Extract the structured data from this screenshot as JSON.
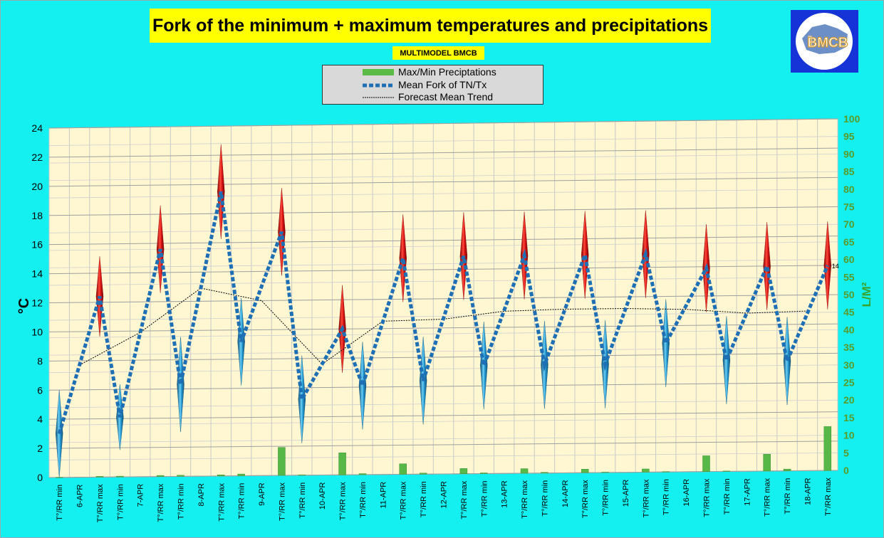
{
  "chart_data": {
    "type": "line",
    "title": "Fork of the minimum + maximum temperatures and precipitations",
    "subtitle": "MULTIMODEL BMCB",
    "legend": [
      "Max/Min Preciptations",
      "Mean Fork of TN/Tx",
      "Forecast Mean Trend"
    ],
    "ylabel": "°C",
    "y2label": "L/M²",
    "ylim": [
      0,
      24
    ],
    "y2lim": [
      0,
      100
    ],
    "yticks": [
      0,
      2,
      4,
      6,
      8,
      10,
      12,
      14,
      16,
      18,
      20,
      22,
      24
    ],
    "y2ticks": [
      0,
      5,
      10,
      15,
      20,
      25,
      30,
      35,
      40,
      45,
      50,
      55,
      60,
      65,
      70,
      75,
      80,
      85,
      90,
      95,
      100
    ],
    "categories": [
      "T°/RR min",
      "6-APR",
      "T°/RR max",
      "T°/RR min",
      "7-APR",
      "T°/RR max",
      "T°/RR min",
      "8-APR",
      "T°/RR max",
      "T°/RR min",
      "9-APR",
      "T°/RR max",
      "T°/RR min",
      "10-APR",
      "T°/RR max",
      "T°/RR min",
      "11-APR",
      "T°/RR max",
      "T°/RR min",
      "12-APR",
      "T°/RR max",
      "T°/RR min",
      "13-APR",
      "T°/RR max",
      "T°/RR min",
      "14-APR",
      "T°/RR max",
      "T°/RR min",
      "15-APR",
      "T°/RR max",
      "T°/RR min",
      "16-APR",
      "T°/RR max",
      "T°/RR min",
      "17-APR",
      "T°/RR max",
      "T°/RR min",
      "18-APR",
      "T°/RR max"
    ],
    "series": [
      {
        "name": "Mean Fork of TN/Tx",
        "values": [
          3.0,
          null,
          12.4,
          4.1,
          null,
          15.6,
          6.3,
          null,
          19.5,
          9.2,
          null,
          16.7,
          5.2,
          null,
          10.0,
          6.1,
          null,
          14.8,
          6.4,
          null,
          14.9,
          7.4,
          null,
          14.9,
          7.4,
          null,
          14.9,
          7.4,
          null,
          14.9,
          8.8,
          null,
          13.9,
          7.6,
          null,
          14.0,
          7.5,
          null,
          14.0
        ]
      },
      {
        "name": "Spread",
        "values": [
          6.0,
          null,
          5.5,
          4.5,
          null,
          6.0,
          6.5,
          null,
          6.5,
          6.0,
          null,
          6.0,
          6.0,
          null,
          6.0,
          6.0,
          null,
          6.0,
          6.0,
          null,
          6.0,
          6.0,
          null,
          6.0,
          6.0,
          null,
          6.0,
          6.0,
          null,
          6.0,
          6.0,
          null,
          6.0,
          6.0,
          null,
          6.0,
          6.0,
          null,
          6.0
        ]
      },
      {
        "name": "Max/Min Preciptations",
        "values": [
          0,
          null,
          0.2,
          0.2,
          null,
          0.3,
          0.3,
          null,
          0.3,
          0.5,
          null,
          8.0,
          0.1,
          null,
          6.3,
          0.3,
          null,
          3.0,
          0.3,
          null,
          1.5,
          0.2,
          null,
          1.3,
          0.2,
          null,
          1.0,
          0.1,
          null,
          0.9,
          0.1,
          null,
          4.5,
          0.1,
          null,
          4.8,
          0.5,
          null,
          12.5
        ]
      },
      {
        "name": "Forecast Mean Trend",
        "values": [
          null,
          7.7,
          null,
          null,
          9.9,
          null,
          null,
          12.9,
          null,
          null,
          12.0,
          null,
          null,
          7.6,
          null,
          null,
          10.5,
          null,
          null,
          10.6,
          null,
          null,
          11.1,
          null,
          null,
          11.2,
          null,
          null,
          11.2,
          null,
          null,
          11.1,
          null,
          null,
          10.8,
          null,
          null,
          10.9,
          null
        ]
      }
    ]
  },
  "chart_data_labels": {
    "last_max": "14"
  },
  "logo": {
    "text": "BMCB"
  }
}
